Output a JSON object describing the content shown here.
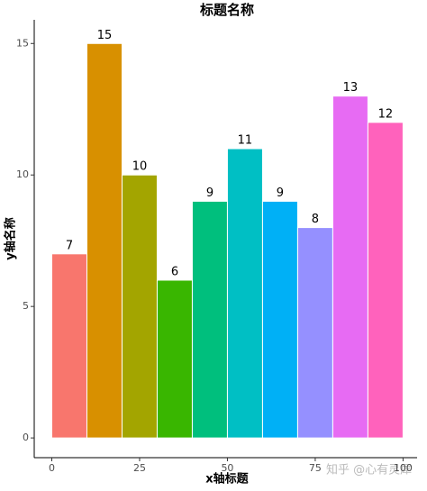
{
  "chart_data": {
    "type": "histogram",
    "title": "标题名称",
    "x_label": "x轴标题",
    "y_label": "y轴名称",
    "bins": [
      0,
      10,
      20,
      30,
      40,
      50,
      60,
      70,
      80,
      90,
      100
    ],
    "values": [
      7,
      15,
      10,
      6,
      9,
      11,
      9,
      8,
      13,
      12
    ],
    "colors": [
      "#F8766D",
      "#D89000",
      "#A3A500",
      "#39B600",
      "#00BF7D",
      "#00BFC4",
      "#00B0F6",
      "#9590FF",
      "#E76BF3",
      "#FF62BC"
    ],
    "xlim": [
      -5,
      104
    ],
    "xticks": [
      0,
      25,
      50,
      75,
      100
    ],
    "ylim": [
      -0.75,
      15.9
    ],
    "yticks": [
      0,
      5,
      10,
      15
    ],
    "grid": false,
    "watermark": "知乎 @心有灵犀"
  }
}
